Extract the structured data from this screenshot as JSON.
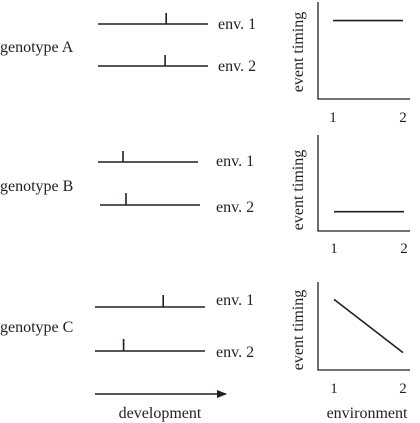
{
  "genotypes": [
    {
      "label": "genotype A",
      "envs": [
        {
          "label": "env. 1",
          "event_position": 0.62
        },
        {
          "label": "env. 2",
          "event_position": 0.61
        }
      ],
      "plot": {
        "ylabel": "event timing",
        "x": [
          1,
          2
        ],
        "y": [
          0.85,
          0.85
        ],
        "xticks": [
          "1",
          "2"
        ]
      }
    },
    {
      "label": "genotype B",
      "envs": [
        {
          "label": "env. 1",
          "event_position": 0.25
        },
        {
          "label": "env. 2",
          "event_position": 0.26
        }
      ],
      "plot": {
        "ylabel": "event timing",
        "x": [
          1,
          2
        ],
        "y": [
          0.15,
          0.15
        ],
        "xticks": [
          "1",
          "2"
        ]
      }
    },
    {
      "label": "genotype C",
      "envs": [
        {
          "label": "env. 1",
          "event_position": 0.62
        },
        {
          "label": "env. 2",
          "event_position": 0.26
        }
      ],
      "plot": {
        "ylabel": "event timing",
        "x": [
          1,
          2
        ],
        "y": [
          0.85,
          0.15
        ],
        "xticks": [
          "1",
          "2"
        ]
      }
    }
  ],
  "development_label": "development",
  "environment_label": "environment"
}
